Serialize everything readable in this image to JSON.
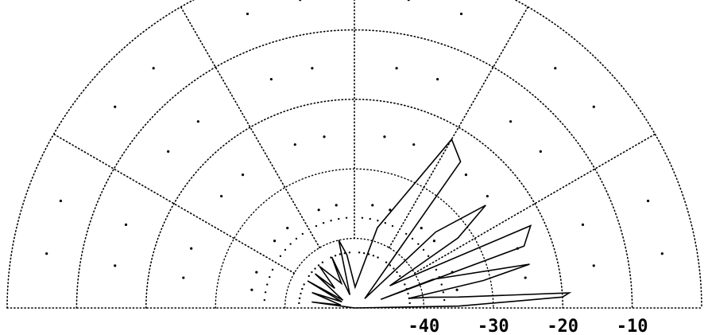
{
  "chart_data": {
    "type": "polar",
    "angle_range_deg": [
      0,
      180
    ],
    "radial_unit": "dB",
    "radial_range": [
      -50,
      0
    ],
    "radial_ticks": [
      -40,
      -30,
      -20,
      -10
    ],
    "radial_tick_labels": [
      "-40",
      "-30",
      "-20",
      "-10"
    ],
    "rings_db": [
      -40,
      -30,
      -20,
      -10,
      0
    ],
    "spokes_deg": [
      0,
      30,
      60,
      90,
      120,
      150,
      180
    ],
    "grid": true,
    "legend": "none",
    "series": [
      {
        "points": [
          [
            180,
            -50
          ],
          [
            172,
            -43.8
          ],
          [
            168,
            -48
          ],
          [
            160,
            -43.5
          ],
          [
            154,
            -48
          ],
          [
            150,
            -42.2
          ],
          [
            146,
            -48
          ],
          [
            139,
            -42.5
          ],
          [
            135,
            -46
          ],
          [
            130,
            -42.2
          ],
          [
            118,
            -46
          ],
          [
            114,
            -42
          ],
          [
            109,
            -48
          ],
          [
            103,
            -40
          ],
          [
            98,
            -42.3
          ],
          [
            88,
            -47
          ],
          [
            74,
            -38
          ],
          [
            60,
            -22
          ],
          [
            54,
            -24
          ],
          [
            42,
            -48
          ],
          [
            43,
            -34
          ],
          [
            38,
            -26
          ],
          [
            34,
            -32
          ],
          [
            32,
            -44
          ],
          [
            30,
            -42
          ],
          [
            25,
            -22
          ],
          [
            20,
            -24
          ],
          [
            18,
            -46
          ],
          [
            20,
            -38
          ],
          [
            14,
            -24
          ],
          [
            12,
            -31
          ],
          [
            10,
            -42
          ],
          [
            8,
            -39
          ],
          [
            6,
            -35
          ],
          [
            4,
            -19
          ],
          [
            3,
            -20
          ],
          [
            1,
            -35
          ],
          [
            0,
            -50
          ]
        ]
      }
    ]
  }
}
